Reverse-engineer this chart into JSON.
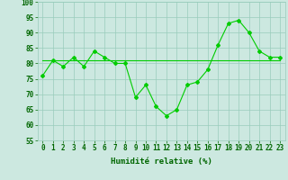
{
  "x": [
    0,
    1,
    2,
    3,
    4,
    5,
    6,
    7,
    8,
    9,
    10,
    11,
    12,
    13,
    14,
    15,
    16,
    17,
    18,
    19,
    20,
    21,
    22,
    23
  ],
  "y_main": [
    76,
    81,
    79,
    82,
    79,
    84,
    82,
    80,
    80,
    69,
    73,
    66,
    63,
    65,
    73,
    74,
    78,
    86,
    93,
    94,
    90,
    84,
    82,
    82
  ],
  "y_avg": [
    81,
    81,
    81,
    81,
    81,
    81,
    81,
    81,
    81,
    81,
    81,
    81,
    81,
    81,
    81,
    81,
    81,
    81,
    81,
    81,
    81,
    81,
    81,
    81
  ],
  "line_color": "#00cc00",
  "avg_color": "#00cc00",
  "bg_color": "#cce8e0",
  "grid_color": "#99ccbb",
  "axis_color": "#006600",
  "ylim": [
    55,
    100
  ],
  "yticks": [
    55,
    60,
    65,
    70,
    75,
    80,
    85,
    90,
    95,
    100
  ],
  "xlabel": "Humidité relative (%)",
  "label_fontsize": 6.5,
  "tick_fontsize": 5.5
}
